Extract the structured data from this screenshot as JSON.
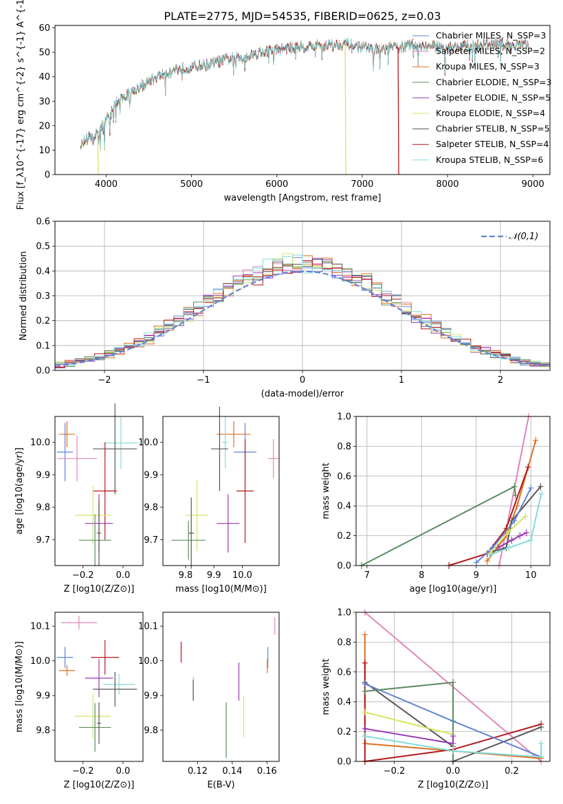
{
  "figure": {
    "title": "PLATE=2775, MJD=54535, FIBERID=0625, z=0.03"
  },
  "colors": {
    "blue": "#6283d6",
    "orange": "#e06f1f",
    "pink": "#e285b9",
    "green": "#5a8a5e",
    "purple": "#9837b6",
    "yellow": "#d5e664",
    "dark": "#555555",
    "red": "#b3171a",
    "cyan": "#80dcdc"
  },
  "chart_data": [
    {
      "id": "spectrum",
      "type": "line",
      "xlabel": "wavelength [Angstrom, rest frame]",
      "ylabel": "Flux [f_λ10^{-17} erg cm^{-2} s^{-1} A^{-1}]",
      "xlim": [
        3400,
        9200
      ],
      "ylim": [
        0,
        61
      ],
      "xticks": [
        4000,
        5000,
        6000,
        7000,
        8000,
        9000
      ],
      "yticks": [
        0,
        10,
        20,
        30,
        40,
        50,
        60
      ],
      "continuum": {
        "x": [
          3700,
          3800,
          3900,
          4000,
          4100,
          4200,
          4400,
          4600,
          4800,
          5000,
          5200,
          5400,
          5600,
          5800,
          6000,
          6200,
          6400,
          6600,
          6800,
          7000,
          7200,
          7400,
          7600,
          8000,
          8400,
          8900
        ],
        "y": [
          13,
          15,
          17,
          22,
          29,
          32,
          36,
          40,
          43,
          44,
          45,
          47,
          48,
          50,
          51,
          52,
          52.5,
          53,
          53.5,
          52,
          51,
          52,
          53,
          52,
          53,
          53
        ]
      },
      "legend_position": "top-right",
      "series": [
        {
          "name": "Chabrier MILES, N_SSP=3",
          "color": "#6283d6"
        },
        {
          "name": "Salpeter MILES, N_SSP=2",
          "color": "#e285b9"
        },
        {
          "name": "Kroupa MILES, N_SSP=3",
          "color": "#e06f1f"
        },
        {
          "name": "Chabrier ELODIE, N_SSP=3",
          "color": "#5a8a5e"
        },
        {
          "name": "Salpeter ELODIE, N_SSP=5",
          "color": "#9837b6"
        },
        {
          "name": "Kroupa ELODIE, N_SSP=4",
          "color": "#d5e664"
        },
        {
          "name": "Chabrier STELIB, N_SSP=5",
          "color": "#555555"
        },
        {
          "name": "Salpeter STELIB, N_SSP=4",
          "color": "#b3171a"
        },
        {
          "name": "Kroupa STELIB, N_SSP=6",
          "color": "#80dcdc"
        }
      ],
      "drops": [
        {
          "x": 3900,
          "color": "#d5e664"
        },
        {
          "x": 6800,
          "color": "#d5e664"
        },
        {
          "x": 7420,
          "color": "#b3171a"
        }
      ]
    },
    {
      "id": "residuals",
      "type": "histogram",
      "xlabel": "(data-model)/error",
      "ylabel": "Normed distribution",
      "xlim": [
        -2.5,
        2.5
      ],
      "ylim": [
        0,
        0.6
      ],
      "xticks": [
        -2,
        -1,
        0,
        1,
        2
      ],
      "yticks": [
        0,
        0.1,
        0.2,
        0.3,
        0.4,
        0.5,
        0.6
      ],
      "grid": true,
      "legend_position": "top-right",
      "normal_curve": {
        "name": "𝒩(0,1)",
        "color": "#6283d6",
        "mu": 0,
        "sigma": 1
      },
      "bin_width": 0.1
    },
    {
      "id": "age-vs-Z",
      "type": "scatter",
      "xlabel": "Z [log10(Z/Z⊙)]",
      "ylabel": "age  [log10(age/yr)]",
      "xlim": [
        -0.34,
        0.1
      ],
      "ylim": [
        9.62,
        10.08
      ],
      "xticks": [
        -0.2,
        0.0
      ],
      "yticks": [
        9.7,
        9.8,
        9.9,
        10.0
      ],
      "points": [
        {
          "x": -0.28,
          "y": 10.025,
          "ex": 0.04,
          "ey": 0.04,
          "color": "#e06f1f"
        },
        {
          "x": -0.29,
          "y": 9.97,
          "ex": 0.04,
          "ey": 0.09,
          "color": "#6283d6"
        },
        {
          "x": -0.23,
          "y": 9.95,
          "ex": 0.1,
          "ey": 0.07,
          "color": "#e285b9"
        },
        {
          "x": -0.01,
          "y": 9.998,
          "ex": 0.09,
          "ey": 0.08,
          "color": "#80dcdc"
        },
        {
          "x": -0.04,
          "y": 9.98,
          "ex": 0.11,
          "ey": 0.14,
          "color": "#555555"
        },
        {
          "x": -0.09,
          "y": 9.85,
          "ex": 0.06,
          "ey": 0.15,
          "color": "#b3171a"
        },
        {
          "x": -0.15,
          "y": 9.775,
          "ex": 0.09,
          "ey": 0.09,
          "color": "#d5e664"
        },
        {
          "x": -0.12,
          "y": 9.75,
          "ex": 0.07,
          "ey": 0.09,
          "color": "#9837b6"
        },
        {
          "x": -0.14,
          "y": 9.698,
          "ex": 0.08,
          "ey": 0.08,
          "color": "#5a8a5e"
        },
        {
          "x": -0.12,
          "y": 9.72,
          "ex": 0.01,
          "ey": 0.1,
          "color": "#555555"
        }
      ]
    },
    {
      "id": "age-vs-mass",
      "type": "scatter",
      "xlabel": "mass [log10(M/M⊙)]",
      "ylabel": "",
      "xlim": [
        9.72,
        10.13
      ],
      "ylim": [
        9.62,
        10.08
      ],
      "xticks": [
        9.8,
        9.9,
        10.0
      ],
      "yticks": [
        9.7,
        9.8,
        9.9,
        10.0
      ],
      "points": [
        {
          "x": 9.97,
          "y": 10.025,
          "ex": 0.06,
          "ey": 0.04,
          "color": "#e06f1f"
        },
        {
          "x": 10.01,
          "y": 9.97,
          "ex": 0.04,
          "ey": 0.09,
          "color": "#6283d6"
        },
        {
          "x": 10.11,
          "y": 9.95,
          "ex": 0.02,
          "ey": 0.06,
          "color": "#e285b9"
        },
        {
          "x": 9.94,
          "y": 10.0,
          "ex": 0.01,
          "ey": 0.08,
          "color": "#80dcdc"
        },
        {
          "x": 9.92,
          "y": 9.98,
          "ex": 0.03,
          "ey": 0.13,
          "color": "#555555"
        },
        {
          "x": 10.01,
          "y": 9.85,
          "ex": 0.03,
          "ey": 0.16,
          "color": "#b3171a"
        },
        {
          "x": 9.84,
          "y": 9.775,
          "ex": 0.04,
          "ey": 0.11,
          "color": "#d5e664"
        },
        {
          "x": 9.95,
          "y": 9.75,
          "ex": 0.04,
          "ey": 0.09,
          "color": "#9837b6"
        },
        {
          "x": 9.81,
          "y": 9.698,
          "ex": 0.06,
          "ey": 0.06,
          "color": "#5a8a5e"
        },
        {
          "x": 9.82,
          "y": 9.72,
          "ex": 0.01,
          "ey": 0.11,
          "color": "#555555"
        }
      ]
    },
    {
      "id": "weight-vs-age",
      "type": "line",
      "xlabel": "age  [log10(age/yr)]",
      "ylabel": "mass weight",
      "xlim": [
        6.8,
        10.35
      ],
      "ylim": [
        0,
        1
      ],
      "xticks": [
        7,
        8,
        9,
        10
      ],
      "yticks": [
        0,
        0.2,
        0.4,
        0.6,
        0.8,
        1.0
      ],
      "grid": true,
      "series": [
        {
          "color": "#e285b9",
          "x": [
            9.42,
            9.96
          ],
          "y": [
            0.0,
            1.0
          ]
        },
        {
          "color": "#e06f1f",
          "x": [
            9.2,
            9.55,
            9.75,
            10.09
          ],
          "y": [
            0.03,
            0.2,
            0.4,
            0.84
          ]
        },
        {
          "color": "#b3171a",
          "x": [
            8.5,
            9.2,
            9.55,
            9.95
          ],
          "y": [
            0.0,
            0.08,
            0.25,
            0.66
          ]
        },
        {
          "color": "#555555",
          "x": [
            9.25,
            9.55,
            9.65,
            10.18
          ],
          "y": [
            0.09,
            0.12,
            0.3,
            0.53
          ]
        },
        {
          "color": "#6283d6",
          "x": [
            9.0,
            9.3,
            9.7,
            10.0
          ],
          "y": [
            0.02,
            0.12,
            0.3,
            0.52
          ]
        },
        {
          "color": "#5a8a5e",
          "x": [
            6.9,
            9.7,
            9.72
          ],
          "y": [
            0.0,
            0.53,
            0.47
          ]
        },
        {
          "color": "#d5e664",
          "x": [
            9.25,
            9.6,
            9.9
          ],
          "y": [
            0.08,
            0.23,
            0.33
          ]
        },
        {
          "color": "#9837b6",
          "x": [
            9.4,
            9.65,
            9.8,
            9.92
          ],
          "y": [
            0.12,
            0.17,
            0.2,
            0.22
          ]
        },
        {
          "color": "#80dcdc",
          "x": [
            9.25,
            9.6,
            10.0,
            10.19
          ],
          "y": [
            0.07,
            0.12,
            0.17,
            0.48
          ]
        }
      ]
    },
    {
      "id": "mass-vs-Z",
      "type": "scatter",
      "xlabel": "Z [log10(Z/Z⊙)]",
      "ylabel": "mass [log10(M/M⊙)]",
      "xlim": [
        -0.34,
        0.1
      ],
      "ylim": [
        9.71,
        10.14
      ],
      "xticks": [
        -0.2,
        0.0
      ],
      "yticks": [
        9.8,
        9.9,
        10.0,
        10.1
      ],
      "points": [
        {
          "x": -0.22,
          "y": 10.11,
          "ex": 0.09,
          "ey": 0.02,
          "color": "#e285b9"
        },
        {
          "x": -0.29,
          "y": 10.01,
          "ex": 0.04,
          "ey": 0.03,
          "color": "#6283d6"
        },
        {
          "x": -0.28,
          "y": 9.972,
          "ex": 0.04,
          "ey": 0.015,
          "color": "#e06f1f"
        },
        {
          "x": -0.09,
          "y": 10.01,
          "ex": 0.07,
          "ey": 0.05,
          "color": "#b3171a"
        },
        {
          "x": -0.12,
          "y": 9.95,
          "ex": 0.07,
          "ey": 0.055,
          "color": "#9837b6"
        },
        {
          "x": -0.02,
          "y": 9.932,
          "ex": 0.08,
          "ey": 0.03,
          "color": "#80dcdc"
        },
        {
          "x": -0.04,
          "y": 9.918,
          "ex": 0.11,
          "ey": 0.05,
          "color": "#555555"
        },
        {
          "x": -0.15,
          "y": 9.84,
          "ex": 0.09,
          "ey": 0.065,
          "color": "#d5e664"
        },
        {
          "x": -0.14,
          "y": 9.808,
          "ex": 0.08,
          "ey": 0.07,
          "color": "#5a8a5e"
        },
        {
          "x": -0.12,
          "y": 9.82,
          "ex": 0.01,
          "ey": 0.06,
          "color": "#555555"
        }
      ]
    },
    {
      "id": "mass-vs-ebv",
      "type": "scatter",
      "xlabel": "E(B-V)",
      "ylabel": "",
      "xlim": [
        0.1,
        0.167
      ],
      "ylim": [
        9.71,
        10.14
      ],
      "xticks": [
        0.12,
        0.14,
        0.16
      ],
      "yticks": [
        9.8,
        9.9,
        10.0,
        10.1
      ],
      "points": [
        {
          "x": 0.1645,
          "y": 10.1,
          "ex": 0.0002,
          "ey": 0.025,
          "color": "#e285b9"
        },
        {
          "x": 0.1105,
          "y": 10.025,
          "ex": 0.0002,
          "ey": 0.03,
          "color": "#b3171a"
        },
        {
          "x": 0.1605,
          "y": 10.01,
          "ex": 0.0002,
          "ey": 0.03,
          "color": "#6283d6"
        },
        {
          "x": 0.1602,
          "y": 9.985,
          "ex": 0.0002,
          "ey": 0.02,
          "color": "#e06f1f"
        },
        {
          "x": 0.1438,
          "y": 9.94,
          "ex": 0.0002,
          "ey": 0.055,
          "color": "#9837b6"
        },
        {
          "x": 0.1175,
          "y": 9.92,
          "ex": 0.0002,
          "ey": 0.035,
          "color": "#80dcdc"
        },
        {
          "x": 0.1175,
          "y": 9.915,
          "ex": 0.0002,
          "ey": 0.03,
          "color": "#555555"
        },
        {
          "x": 0.1466,
          "y": 9.84,
          "ex": 0.0002,
          "ey": 0.06,
          "color": "#d5e664"
        },
        {
          "x": 0.1365,
          "y": 9.8,
          "ex": 0.0002,
          "ey": 0.08,
          "color": "#5a8a5e"
        }
      ]
    },
    {
      "id": "weight-vs-Z",
      "type": "line",
      "xlabel": "Z [log10(Z/Z⊙)]",
      "ylabel": "mass weight",
      "xlim": [
        -0.33,
        0.33
      ],
      "ylim": [
        0,
        1
      ],
      "xticks": [
        -0.2,
        0.0,
        0.2
      ],
      "yticks": [
        0,
        0.2,
        0.4,
        0.6,
        0.8,
        1.0
      ],
      "grid": true,
      "series": [
        {
          "color": "#e285b9",
          "x": [
            -0.3,
            0.3
          ],
          "y": [
            1.0,
            0.0
          ]
        },
        {
          "color": "#e06f1f",
          "x": [
            -0.3,
            -0.3,
            0.0,
            0.3
          ],
          "y": [
            0.85,
            0.12,
            0.07,
            0.02
          ]
        },
        {
          "color": "#b3171a",
          "x": [
            -0.3,
            -0.3,
            0.0,
            0.3
          ],
          "y": [
            0.66,
            0.0,
            0.08,
            0.25
          ]
        },
        {
          "color": "#555555",
          "x": [
            -0.3,
            0.0,
            0.0,
            0.3
          ],
          "y": [
            0.53,
            0.1,
            0.0,
            0.23
          ]
        },
        {
          "color": "#6283d6",
          "x": [
            -0.3,
            0.0,
            0.3
          ],
          "y": [
            0.52,
            0.27,
            0.03
          ]
        },
        {
          "color": "#5a8a5e",
          "x": [
            -0.3,
            0.0,
            0.0
          ],
          "y": [
            0.47,
            0.53,
            0.0
          ]
        },
        {
          "color": "#d5e664",
          "x": [
            -0.3,
            0.0,
            0.0
          ],
          "y": [
            0.33,
            0.18,
            0.07
          ]
        },
        {
          "color": "#9837b6",
          "x": [
            -0.3,
            0.0,
            0.0
          ],
          "y": [
            0.22,
            0.12,
            0.17
          ]
        },
        {
          "color": "#80dcdc",
          "x": [
            -0.3,
            0.0,
            0.3,
            0.3
          ],
          "y": [
            0.17,
            0.07,
            0.03,
            0.12
          ]
        }
      ]
    }
  ]
}
